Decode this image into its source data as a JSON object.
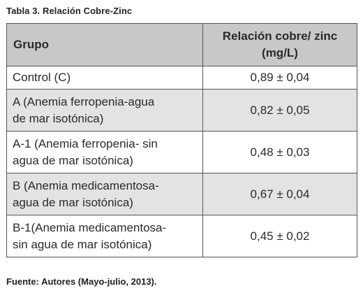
{
  "caption": "Tabla 3. Relación Cobre-Zinc",
  "header": {
    "group": "Grupo",
    "ratio_line1": "Relación cobre/ zinc",
    "ratio_line2": "(mg/L)"
  },
  "rows": [
    {
      "group_lines": [
        "Control (C)"
      ],
      "value": "0,89 ± 0,04"
    },
    {
      "group_lines": [
        "A (Anemia ferropenia-agua",
        "de mar isotónica)"
      ],
      "value": "0,82 ± 0,05"
    },
    {
      "group_lines": [
        "A-1 (Anemia ferropenia- sin",
        "agua de mar isotónica)"
      ],
      "value": "0,48 ± 0,03"
    },
    {
      "group_lines": [
        "B (Anemia medicamentosa-",
        "agua de mar isotónica)"
      ],
      "value": "0,67 ± 0,04"
    },
    {
      "group_lines": [
        "B-1(Anemia medicamentosa-",
        "sin agua de mar isotónica)"
      ],
      "value": "0,45 ± 0,02"
    }
  ],
  "footer": "Fuente: Autores (Mayo-julio, 2013)."
}
